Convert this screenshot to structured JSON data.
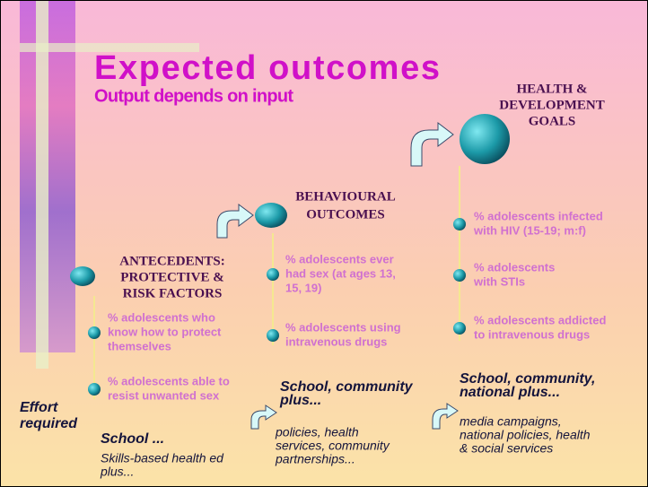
{
  "title": "Expected outcomes",
  "subtitle": "Output depends on input",
  "effort_label": [
    "Effort",
    "required"
  ],
  "columns": [
    {
      "heading": [
        "ANTECEDENTS:",
        "PROTECTIVE &",
        "RISK FACTORS"
      ],
      "items": [
        [
          "% adolescents who",
          "know how to protect",
          "themselves"
        ],
        [
          "% adolescents able to",
          "resist unwanted sex"
        ]
      ],
      "effort": [
        "School ..."
      ],
      "detail": [
        "Skills-based health ed",
        "plus..."
      ]
    },
    {
      "heading": [
        "BEHAVIOURAL",
        "OUTCOMES"
      ],
      "items": [
        [
          "% adolescents ever",
          "had sex (at ages 13,",
          "15, 19)"
        ],
        [
          "% adolescents using",
          "intravenous drugs"
        ]
      ],
      "effort": [
        "School, community",
        "plus..."
      ],
      "detail": [
        "policies, health",
        "services, community",
        "partnerships..."
      ]
    },
    {
      "heading": [
        "HEALTH &",
        "DEVELOPMENT",
        "GOALS"
      ],
      "items": [
        [
          "% adolescents infected",
          "with HIV (15-19; m:f)"
        ],
        [
          "% adolescents",
          "with STIs"
        ],
        [
          "% adolescents addicted",
          "to intravenous drugs"
        ]
      ],
      "effort": [
        "School, community,",
        "national plus..."
      ],
      "detail": [
        "media campaigns,",
        "national policies, health",
        "& social services"
      ]
    }
  ]
}
